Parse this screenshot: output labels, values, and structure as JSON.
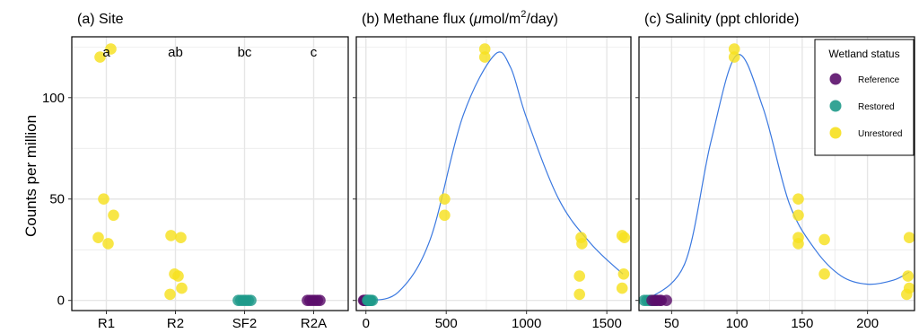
{
  "figure": {
    "ylabel": "Counts per million",
    "legend": {
      "title": "Wetland status",
      "items": [
        {
          "label": "Reference",
          "color": "#5b0f6b"
        },
        {
          "label": "Restored",
          "color": "#1f9a8a"
        },
        {
          "label": "Unrestored",
          "color": "#f6e01e"
        }
      ]
    }
  },
  "chart_data": [
    {
      "type": "scatter",
      "title": "(a) Site",
      "x_type": "categorical",
      "categories": [
        "R1",
        "R2",
        "SF2",
        "R2A"
      ],
      "significance_letters": [
        "a",
        "ab",
        "bc",
        "c"
      ],
      "ylim": [
        -5,
        130
      ],
      "yticks": [
        0,
        50,
        100
      ],
      "grid": true,
      "series": [
        {
          "name": "Unrestored",
          "color": "#f6e01e",
          "points": [
            {
              "x": "R1",
              "y": 120
            },
            {
              "x": "R1",
              "y": 124
            },
            {
              "x": "R1",
              "y": 50
            },
            {
              "x": "R1",
              "y": 42
            },
            {
              "x": "R1",
              "y": 31
            },
            {
              "x": "R1",
              "y": 28
            },
            {
              "x": "R2",
              "y": 31
            },
            {
              "x": "R2",
              "y": 32
            },
            {
              "x": "R2",
              "y": 12
            },
            {
              "x": "R2",
              "y": 13
            },
            {
              "x": "R2",
              "y": 6
            },
            {
              "x": "R2",
              "y": 3
            }
          ]
        },
        {
          "name": "Restored",
          "color": "#1f9a8a",
          "points": [
            {
              "x": "SF2",
              "y": 0
            },
            {
              "x": "SF2",
              "y": 0
            },
            {
              "x": "SF2",
              "y": 0
            },
            {
              "x": "SF2",
              "y": 0
            },
            {
              "x": "SF2",
              "y": 0
            },
            {
              "x": "SF2",
              "y": 0
            }
          ]
        },
        {
          "name": "Reference",
          "color": "#5b0f6b",
          "points": [
            {
              "x": "R2A",
              "y": 0
            },
            {
              "x": "R2A",
              "y": 0
            },
            {
              "x": "R2A",
              "y": 0
            },
            {
              "x": "R2A",
              "y": 0
            },
            {
              "x": "R2A",
              "y": 0
            },
            {
              "x": "R2A",
              "y": 0
            }
          ]
        }
      ]
    },
    {
      "type": "scatter",
      "title": "(b) Methane flux",
      "title_unit": {
        "pre": "(",
        "mu": "μ",
        "mid": "mol/m",
        "sup": "2",
        "post": "/day)"
      },
      "xlim": [
        -60,
        1650
      ],
      "xticks": [
        0,
        500,
        1000,
        1500
      ],
      "ylim": [
        -5,
        130
      ],
      "grid": true,
      "series": [
        {
          "name": "Reference",
          "color": "#5b0f6b",
          "points": [
            {
              "x": -15,
              "y": 0
            },
            {
              "x": -10,
              "y": 0
            },
            {
              "x": -5,
              "y": 0
            },
            {
              "x": 0,
              "y": 0
            },
            {
              "x": 5,
              "y": 0
            },
            {
              "x": 10,
              "y": 0
            }
          ]
        },
        {
          "name": "Restored",
          "color": "#1f9a8a",
          "points": [
            {
              "x": 10,
              "y": 0
            },
            {
              "x": 15,
              "y": 0
            },
            {
              "x": 20,
              "y": 0
            },
            {
              "x": 25,
              "y": 0
            },
            {
              "x": 30,
              "y": 0
            },
            {
              "x": 40,
              "y": 0
            }
          ]
        },
        {
          "name": "Unrestored",
          "color": "#f6e01e",
          "points": [
            {
              "x": 740,
              "y": 124
            },
            {
              "x": 740,
              "y": 120
            },
            {
              "x": 490,
              "y": 50
            },
            {
              "x": 490,
              "y": 42
            },
            {
              "x": 1340,
              "y": 31
            },
            {
              "x": 1345,
              "y": 28
            },
            {
              "x": 1330,
              "y": 12
            },
            {
              "x": 1330,
              "y": 3
            },
            {
              "x": 1595,
              "y": 32
            },
            {
              "x": 1610,
              "y": 31
            },
            {
              "x": 1605,
              "y": 13
            },
            {
              "x": 1595,
              "y": 6
            }
          ]
        }
      ],
      "fit_curve": {
        "x": [
          0,
          200,
          400,
          600,
          800,
          900,
          1000,
          1200,
          1400,
          1600
        ],
        "y": [
          0,
          4,
          30,
          90,
          121,
          115,
          90,
          50,
          28,
          13
        ]
      }
    },
    {
      "type": "scatter",
      "title": "(c) Salinity (ppt chloride)",
      "xlim": [
        25,
        236
      ],
      "xticks": [
        50,
        100,
        150,
        200
      ],
      "ylim": [
        -5,
        130
      ],
      "grid": true,
      "series": [
        {
          "name": "Restored",
          "color": "#1f9a8a",
          "points": [
            {
              "x": 29,
              "y": 0
            },
            {
              "x": 31,
              "y": 0
            },
            {
              "x": 33,
              "y": 0
            },
            {
              "x": 34,
              "y": 0
            },
            {
              "x": 36,
              "y": 0
            },
            {
              "x": 38,
              "y": 0
            }
          ]
        },
        {
          "name": "Reference",
          "color": "#5b0f6b",
          "points": [
            {
              "x": 35,
              "y": 0
            },
            {
              "x": 37,
              "y": 0
            },
            {
              "x": 39,
              "y": 0
            },
            {
              "x": 41,
              "y": 0
            },
            {
              "x": 42,
              "y": 0
            },
            {
              "x": 46,
              "y": 0
            }
          ]
        },
        {
          "name": "Unrestored",
          "color": "#f6e01e",
          "points": [
            {
              "x": 98,
              "y": 124
            },
            {
              "x": 98,
              "y": 120
            },
            {
              "x": 147,
              "y": 50
            },
            {
              "x": 147,
              "y": 42
            },
            {
              "x": 147,
              "y": 31
            },
            {
              "x": 147,
              "y": 28
            },
            {
              "x": 167,
              "y": 30
            },
            {
              "x": 167,
              "y": 13
            },
            {
              "x": 232,
              "y": 31
            },
            {
              "x": 231,
              "y": 12
            },
            {
              "x": 232,
              "y": 6
            },
            {
              "x": 230,
              "y": 3
            }
          ]
        }
      ],
      "fit_curve": {
        "x": [
          30,
          60,
          80,
          100,
          120,
          140,
          160,
          180,
          200,
          220,
          232
        ],
        "y": [
          0,
          18,
          78,
          121,
          95,
          48,
          25,
          12,
          8,
          10,
          14
        ]
      }
    }
  ]
}
